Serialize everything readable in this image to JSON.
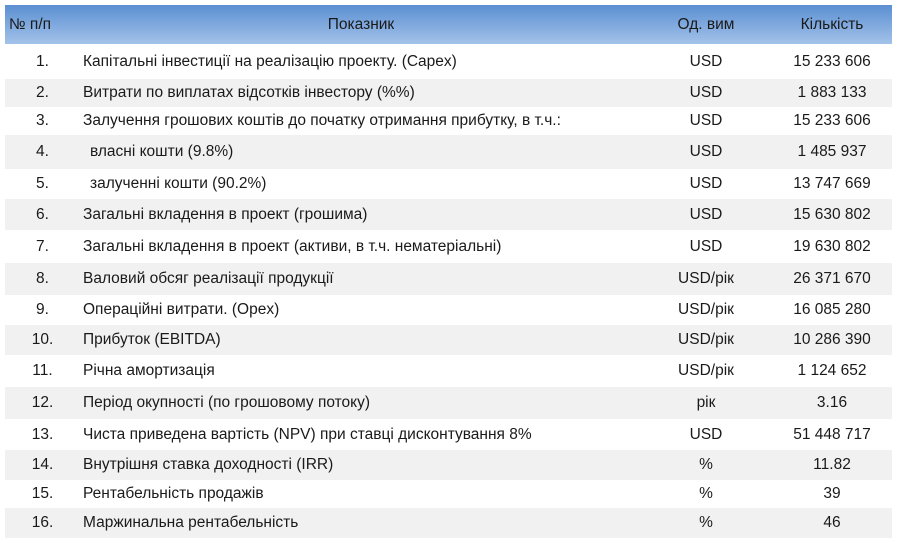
{
  "header": {
    "num": "№ п/п",
    "name": "Показник",
    "unit": "Од. вим",
    "qty": "Кількість"
  },
  "rows": [
    {
      "num": "1.",
      "name": "Капітальні інвестиції на реалізацію проекту. (Capex)",
      "unit": "USD",
      "qty": "15 233 606"
    },
    {
      "num": "2.",
      "name": "Витрати по виплатах відсотків інвестору (%%)",
      "unit": "USD",
      "qty": "1 883 133"
    },
    {
      "num": "3.",
      "name": "Залучення грошових коштів до початку отримання прибутку, в т.ч.:",
      "unit": "USD",
      "qty": "15 233 606"
    },
    {
      "num": "4.",
      "name": "власні кошти (9.8%)",
      "unit": "USD",
      "qty": "1 485 937"
    },
    {
      "num": "5.",
      "name": "залученні кошти  (90.2%)",
      "unit": "USD",
      "qty": "13 747 669"
    },
    {
      "num": "6.",
      "name": "Загальні вкладення в проект (грошима)",
      "unit": "USD",
      "qty": "15 630 802"
    },
    {
      "num": "7.",
      "name": "Загальні вкладення в проект (активи, в т.ч. нематеріальні)",
      "unit": "USD",
      "qty": "19 630 802"
    },
    {
      "num": "8.",
      "name": "Валовий обсяг реалізації продукції",
      "unit": "USD/рік",
      "qty": "26 371 670"
    },
    {
      "num": "9.",
      "name": "Операційні витрати. (Opex)",
      "unit": "USD/рік",
      "qty": "16 085 280"
    },
    {
      "num": "10.",
      "name": "Прибуток (EBITDA)",
      "unit": "USD/рік",
      "qty": "10 286 390"
    },
    {
      "num": "11.",
      "name": "Річна амортизація",
      "unit": "USD/рік",
      "qty": "1 124 652"
    },
    {
      "num": "12.",
      "name": "Період окупності (по грошовому потоку)",
      "unit": "рік",
      "qty": "3.16"
    },
    {
      "num": "13.",
      "name": "Чиста приведена вартість (NPV) при ставці дисконтування 8%",
      "unit": "USD",
      "qty": "51 448 717"
    },
    {
      "num": "14.",
      "name": "Внутрішня ставка доходності (IRR)",
      "unit": "%",
      "qty": "11.82"
    },
    {
      "num": "15.",
      "name": "Рентабельність продажів",
      "unit": "%",
      "qty": "39"
    },
    {
      "num": "16.",
      "name": "Маржинальна рентабельність",
      "unit": "%",
      "qty": "46"
    }
  ]
}
